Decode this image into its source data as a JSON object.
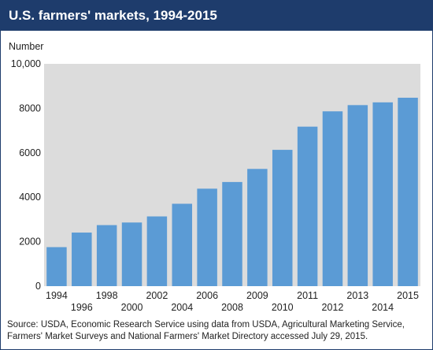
{
  "header": {
    "title": "U.S. farmers' markets, 1994-2015"
  },
  "chart_data": {
    "type": "bar",
    "title": "U.S. farmers' markets, 1994-2015",
    "ylabel": "Number",
    "xlabel": "",
    "ylim": [
      0,
      10000
    ],
    "yticks": [
      0,
      2000,
      4000,
      6000,
      8000,
      10000
    ],
    "ytick_labels": [
      "0",
      "2000",
      "4000",
      "6000",
      "8000",
      "10,000"
    ],
    "grid": false,
    "bar_color": "#5b9bd5",
    "plot_background": "#dcdcdc",
    "categories": [
      "1994",
      "1996",
      "1998",
      "2000",
      "2002",
      "2004",
      "2006",
      "2008",
      "2009",
      "2010",
      "2011",
      "2012",
      "2013",
      "2014",
      "2015"
    ],
    "values": [
      1755,
      2410,
      2746,
      2863,
      3137,
      3706,
      4385,
      4685,
      5274,
      6132,
      7175,
      7864,
      8144,
      8268,
      8476
    ]
  },
  "source": "Source: USDA, Economic Research Service using data from USDA, Agricultural Marketing Service, Farmers' Market Surveys and National Farmers' Market Directory accessed July 29, 2015."
}
